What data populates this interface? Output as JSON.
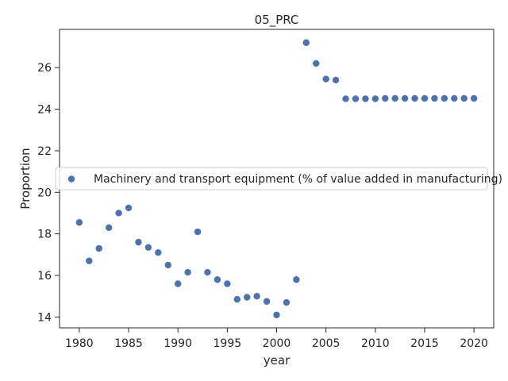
{
  "chart_data": {
    "type": "scatter",
    "title": "05_PRC",
    "xlabel": "year",
    "ylabel": "Proportion",
    "xlim": [
      1978,
      2022
    ],
    "ylim": [
      13.48,
      27.84
    ],
    "xticks": [
      1980,
      1985,
      1990,
      1995,
      2000,
      2005,
      2010,
      2015,
      2020
    ],
    "yticks": [
      14,
      16,
      18,
      20,
      22,
      24,
      26
    ],
    "grid": false,
    "legend_position": "center-left",
    "marker_color": "#4c72b0",
    "series": [
      {
        "name": "Machinery and transport equipment (% of value added in manufacturing)",
        "x": [
          1980,
          1981,
          1982,
          1983,
          1984,
          1985,
          1986,
          1987,
          1988,
          1989,
          1990,
          1991,
          1992,
          1993,
          1994,
          1995,
          1996,
          1997,
          1998,
          1999,
          2000,
          2001,
          2002,
          2003,
          2004,
          2005,
          2006,
          2007,
          2008,
          2009,
          2010,
          2011,
          2012,
          2013,
          2014,
          2015,
          2016,
          2017,
          2018,
          2019,
          2020
        ],
        "y": [
          18.55,
          16.7,
          17.3,
          18.3,
          19.0,
          19.25,
          17.6,
          17.35,
          17.1,
          16.5,
          15.6,
          16.15,
          18.1,
          16.15,
          15.8,
          15.6,
          14.85,
          14.95,
          15.0,
          14.75,
          14.1,
          14.7,
          15.8,
          27.2,
          26.2,
          25.45,
          25.4,
          24.5,
          24.5,
          24.5,
          24.5,
          24.52,
          24.52,
          24.52,
          24.52,
          24.52,
          24.52,
          24.52,
          24.52,
          24.52,
          24.52
        ]
      }
    ]
  }
}
